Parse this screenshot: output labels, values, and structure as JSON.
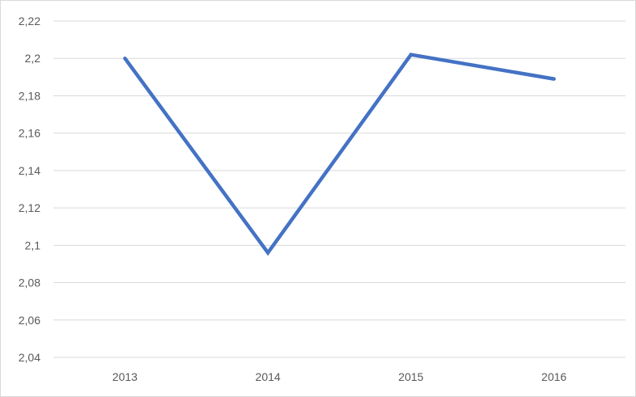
{
  "chart_data": {
    "type": "line",
    "title": "",
    "xlabel": "",
    "ylabel": "",
    "categories": [
      "2013",
      "2014",
      "2015",
      "2016"
    ],
    "series": [
      {
        "values": [
          2.2,
          2.096,
          2.202,
          2.189
        ],
        "color": "#4472C4"
      }
    ],
    "ylim": [
      2.04,
      2.22
    ],
    "yticks": [
      2.04,
      2.06,
      2.08,
      2.1,
      2.12,
      2.14,
      2.16,
      2.18,
      2.2,
      2.22
    ],
    "ytick_labels": [
      "2,04",
      "2,06",
      "2,08",
      "2,1",
      "2,12",
      "2,14",
      "2,16",
      "2,18",
      "2,2",
      "2,22"
    ],
    "grid": true,
    "legend": "none",
    "gridline_color": "#d9d9d9",
    "axis_label_color": "#595959"
  }
}
